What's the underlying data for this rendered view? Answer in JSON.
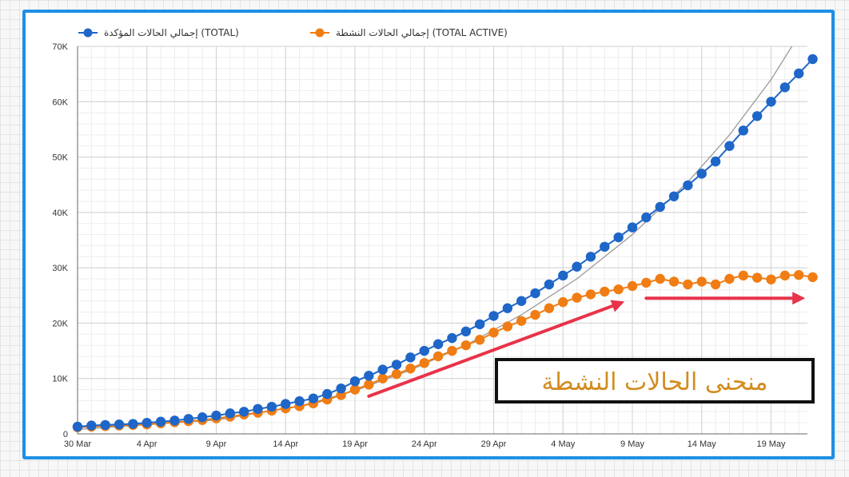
{
  "chart_data": {
    "type": "line",
    "title": "",
    "xlabel": "",
    "ylabel": "",
    "ylim": [
      0,
      70000
    ],
    "yticks": [
      0,
      10000,
      20000,
      30000,
      40000,
      50000,
      60000,
      70000
    ],
    "ytick_labels": [
      "0",
      "10K",
      "20K",
      "30K",
      "40K",
      "50K",
      "60K",
      "70K"
    ],
    "x_tick_labels": [
      {
        "day": 0,
        "label": "30 Mar"
      },
      {
        "day": 5,
        "label": "4 Apr"
      },
      {
        "day": 10,
        "label": "9 Apr"
      },
      {
        "day": 15,
        "label": "14 Apr"
      },
      {
        "day": 20,
        "label": "19 Apr"
      },
      {
        "day": 25,
        "label": "24 Apr"
      },
      {
        "day": 30,
        "label": "29 Apr"
      },
      {
        "day": 35,
        "label": "4 May"
      },
      {
        "day": 40,
        "label": "9 May"
      },
      {
        "day": 45,
        "label": "14 May"
      },
      {
        "day": 50,
        "label": "19 May"
      }
    ],
    "x_range": [
      0,
      52.5
    ],
    "grid": true,
    "legend_position": "top-left",
    "series": [
      {
        "name": "إجمالي الحالات المؤكدة (TOTAL)",
        "color": "#1e66c8",
        "values": [
          1300,
          1500,
          1600,
          1700,
          1800,
          2000,
          2200,
          2400,
          2700,
          3000,
          3300,
          3700,
          4000,
          4500,
          4900,
          5400,
          5900,
          6400,
          7200,
          8200,
          9500,
          10500,
          11600,
          12500,
          13800,
          15000,
          16200,
          17300,
          18500,
          19800,
          21300,
          22700,
          24000,
          25400,
          27000,
          28600,
          30200,
          32000,
          33800,
          35500,
          37300,
          39100,
          41000,
          42900,
          44900,
          47000,
          49200,
          52000,
          54800,
          57400,
          60000,
          62600,
          65100,
          67700
        ]
      },
      {
        "name": "إجمالي الحالات النشطة (TOTAL ACTIVE)",
        "color": "#f07d14",
        "values": [
          1200,
          1300,
          1400,
          1500,
          1600,
          1700,
          1900,
          2100,
          2300,
          2500,
          2800,
          3100,
          3500,
          3800,
          4200,
          4600,
          5000,
          5500,
          6200,
          7000,
          8000,
          8900,
          10000,
          10800,
          11800,
          12800,
          14000,
          15000,
          16000,
          17000,
          18300,
          19400,
          20400,
          21500,
          22700,
          23800,
          24600,
          25200,
          25700,
          26100,
          26700,
          27300,
          28000,
          27500,
          27000,
          27500,
          27000,
          28000,
          28600,
          28200,
          27900,
          28600,
          28700,
          28300
        ]
      }
    ],
    "trend_line": {
      "name": "exponential trend",
      "color": "#9a9a9a",
      "values": [
        {
          "day": 0,
          "value": 800
        },
        {
          "day": 10,
          "value": 2500
        },
        {
          "day": 16,
          "value": 5000
        },
        {
          "day": 20,
          "value": 7800
        },
        {
          "day": 24,
          "value": 11500
        },
        {
          "day": 28,
          "value": 16000
        },
        {
          "day": 32,
          "value": 21500
        },
        {
          "day": 36,
          "value": 28000
        },
        {
          "day": 40,
          "value": 36000
        },
        {
          "day": 44,
          "value": 45500
        },
        {
          "day": 47,
          "value": 54000
        },
        {
          "day": 50,
          "value": 64000
        },
        {
          "day": 52,
          "value": 72000
        }
      ]
    },
    "annotations": {
      "box_text": "منحنى الحالات النشطة",
      "arrow_color": "#e8334a",
      "arrows": [
        {
          "from_day": 21,
          "from_value": 6800,
          "to_day": 39,
          "to_value": 23500
        },
        {
          "from_day": 41,
          "from_value": 24500,
          "to_day": 52,
          "to_value": 24500
        }
      ]
    }
  }
}
